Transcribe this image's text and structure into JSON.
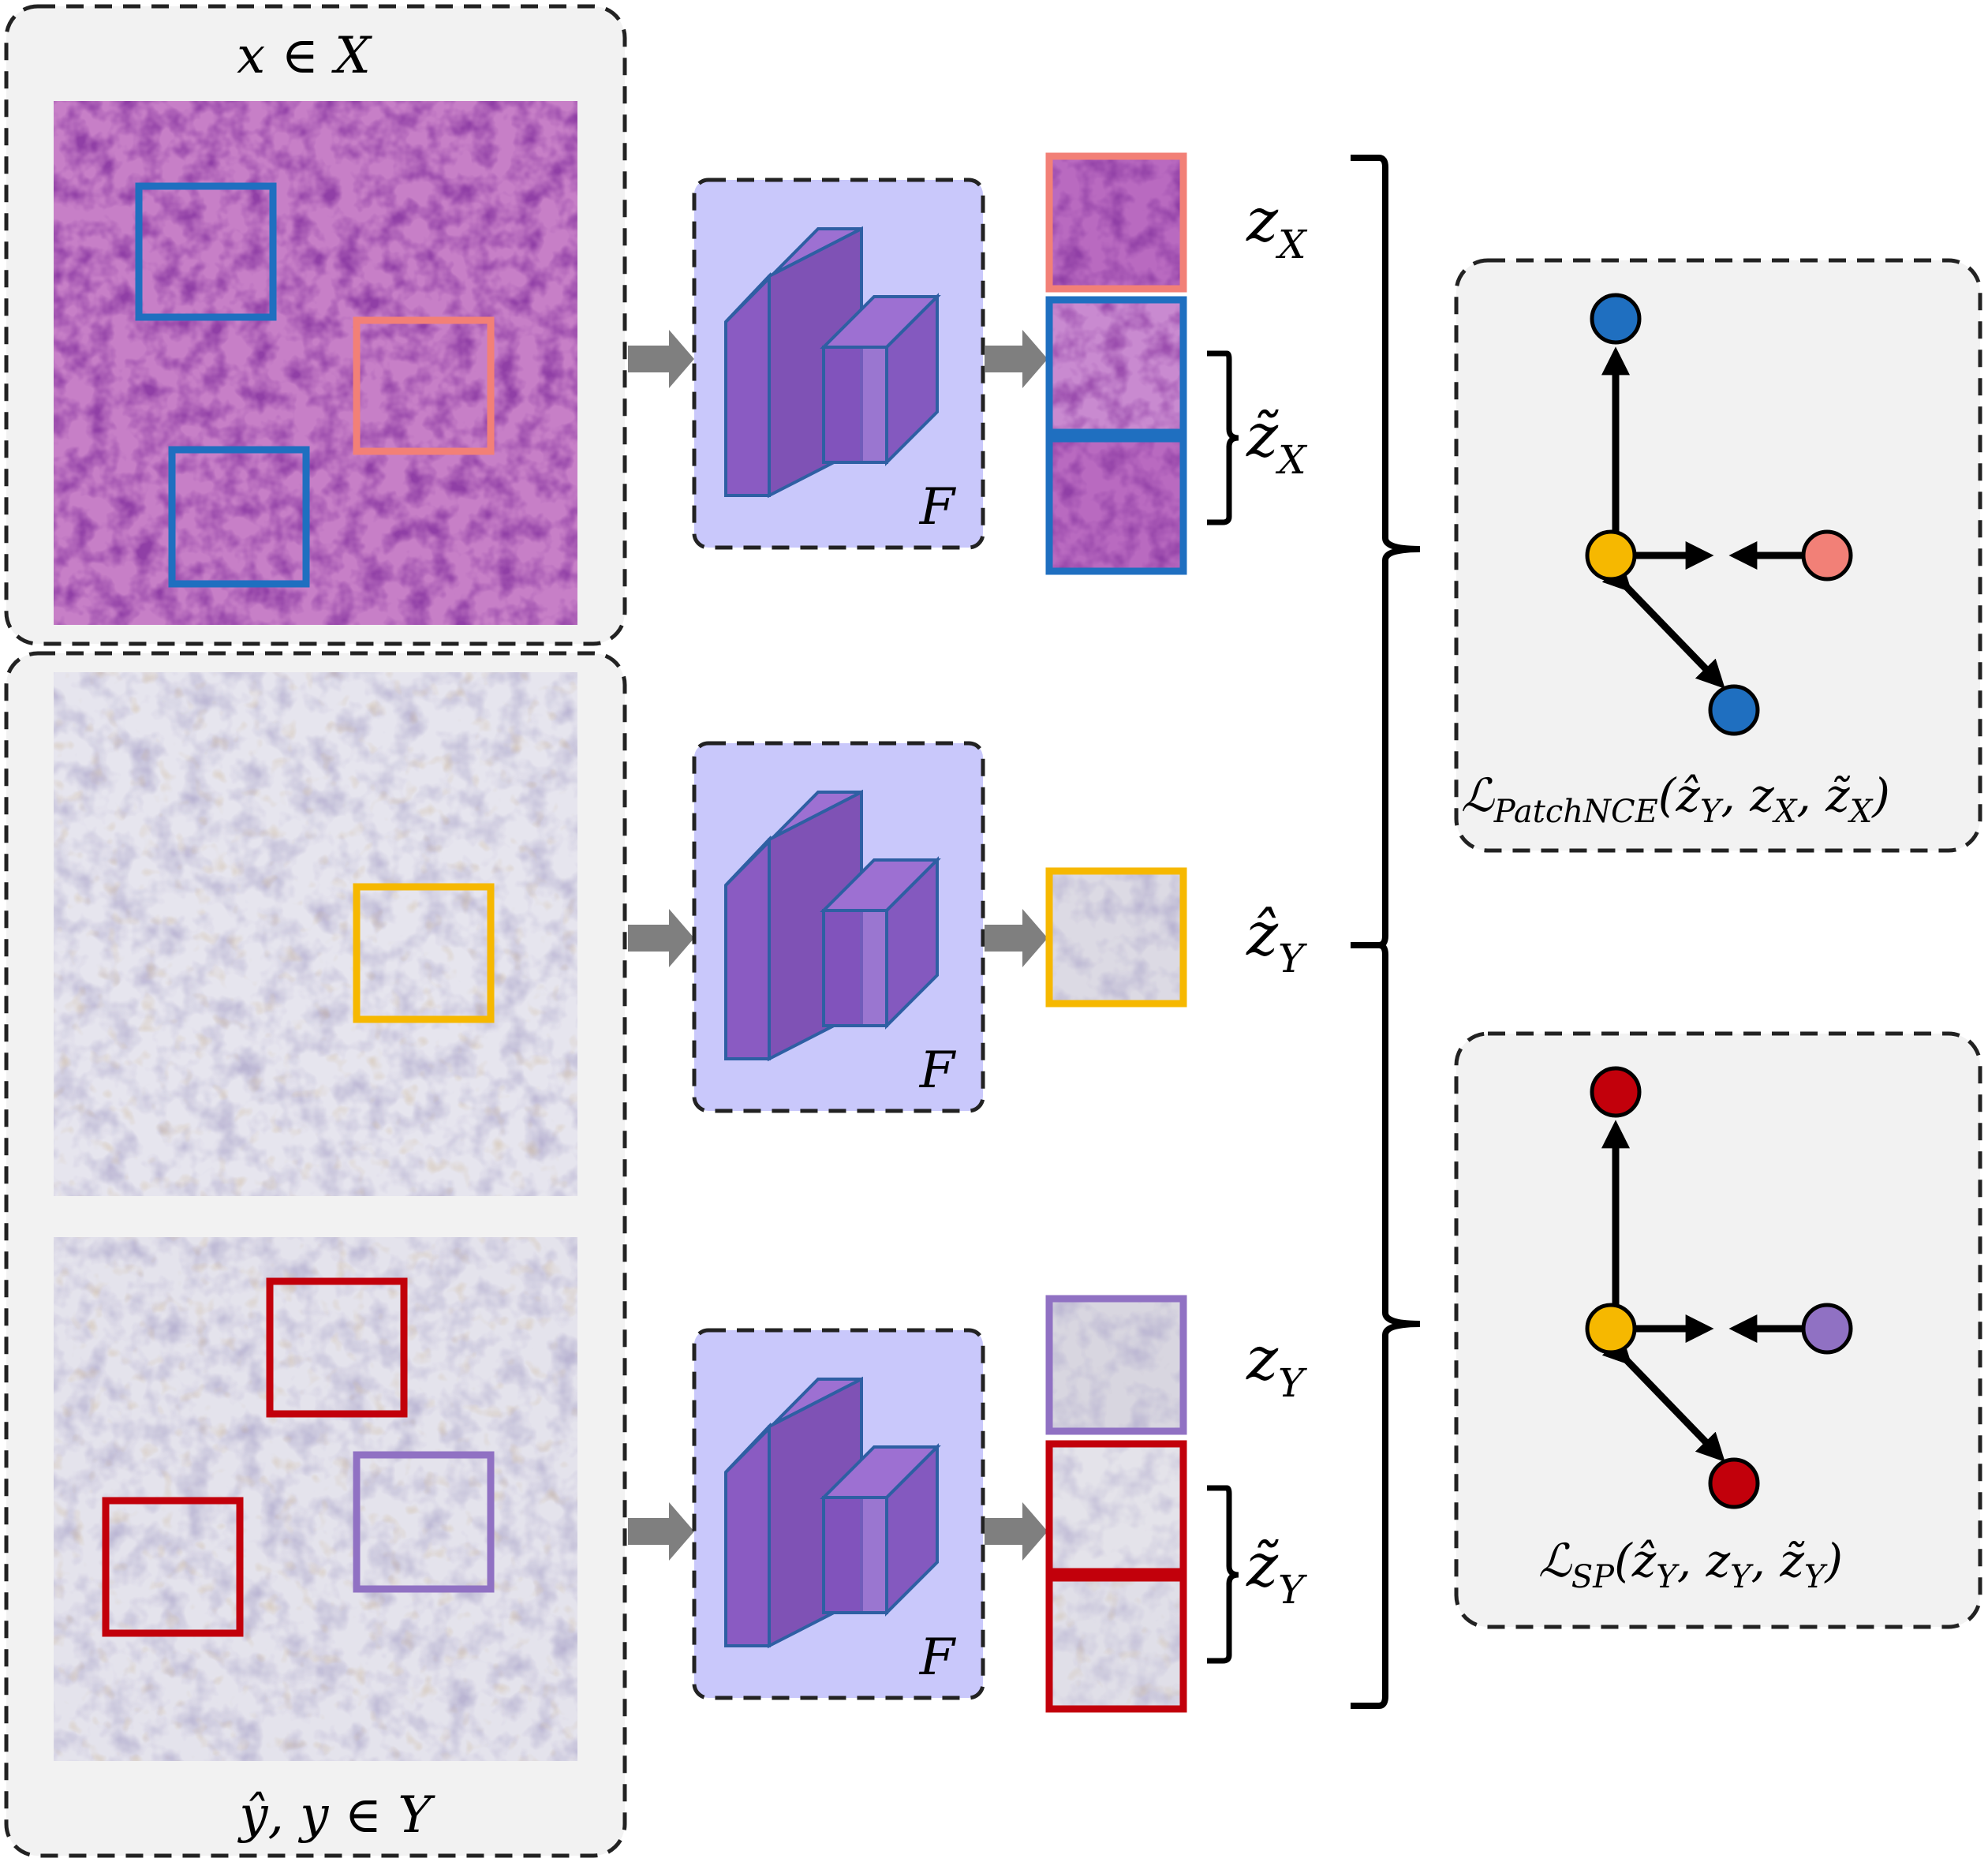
{
  "colors": {
    "he_stain": "#9a3ea6",
    "ihc_stain": "#d9d6e4",
    "encoder_fill": "#c9c8fb",
    "block_fill": "#8a5bc2",
    "blue": "#1f6fc0",
    "salmon": "#f28077",
    "yellow": "#f6b800",
    "red": "#c2000b",
    "purple": "#9071c3",
    "arrow_grey": "#7f7f7f",
    "panel_grey": "#f2f2f2"
  },
  "left": {
    "top_label": {
      "main": "x ∈ X"
    },
    "bottom_label": {
      "main": "ŷ, y ∈ Y"
    }
  },
  "encoders": [
    {
      "label": "F"
    },
    {
      "label": "F"
    },
    {
      "label": "F"
    }
  ],
  "embeddings": {
    "zX": {
      "base": "z",
      "sub": "X"
    },
    "zX_tilde": {
      "base": "z̃",
      "sub": "X"
    },
    "zY_hat": {
      "base": "ẑ",
      "sub": "Y"
    },
    "zY": {
      "base": "z",
      "sub": "Y"
    },
    "zY_tilde": {
      "base": "z̃",
      "sub": "Y"
    }
  },
  "losses": {
    "patchnce": {
      "symbol": "ℒ",
      "sub": "PatchNCE",
      "args": "(ẑ",
      "a1": "Y",
      "sep1": ", z",
      "a2": "X",
      "sep2": ", z̃",
      "a3": "X",
      "close": ")"
    },
    "sp": {
      "symbol": "ℒ",
      "sub": "SP",
      "args": "(ẑ",
      "a1": "Y",
      "sep1": ", z",
      "a2": "Y",
      "sep2": ", z̃",
      "a3": "Y",
      "close": ")"
    }
  }
}
